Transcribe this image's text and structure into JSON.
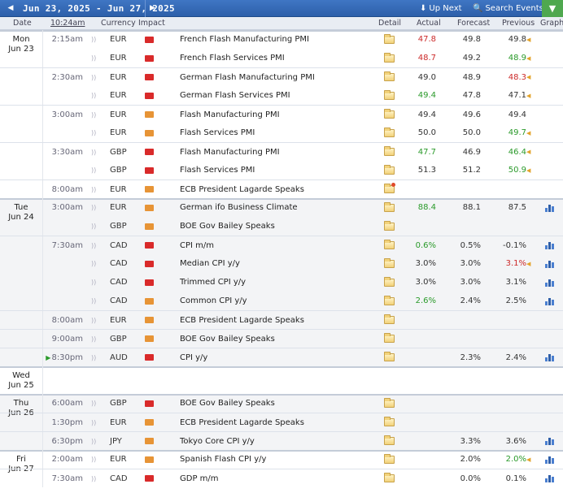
{
  "toolbar": {
    "date_range": "Jun 23, 2025 - Jun 27, 2025",
    "prev_icon": "caret-left-icon",
    "next_icon": "caret-right-icon",
    "up_next_label": "Up Next",
    "search_label": "Search Events",
    "filter_icon": "filter-icon"
  },
  "header": {
    "date": "Date",
    "time": "10:24am",
    "currency": "Currency",
    "impact": "Impact",
    "detail": "Detail",
    "actual": "Actual",
    "forecast": "Forecast",
    "previous": "Previous",
    "graph": "Graph"
  },
  "days": [
    {
      "name": "Mon",
      "date": "Jun 23"
    },
    {
      "name": "Tue",
      "date": "Jun 24"
    },
    {
      "name": "Wed",
      "date": "Jun 25"
    },
    {
      "name": "Thu",
      "date": "Jun 26"
    },
    {
      "name": "Fri",
      "date": "Jun 27"
    }
  ],
  "events": [
    {
      "time": "2:15am",
      "currency": "EUR",
      "impact": "high",
      "event": "French Flash Manufacturing PMI",
      "detail": "folder",
      "actual": "47.8",
      "actual_color": "red",
      "forecast": "49.8",
      "previous": "49.8",
      "revised": true,
      "graph": false
    },
    {
      "time": "",
      "currency": "EUR",
      "impact": "high",
      "event": "French Flash Services PMI",
      "detail": "folder",
      "actual": "48.7",
      "actual_color": "red",
      "forecast": "49.2",
      "previous": "48.9",
      "previous_color": "green",
      "revised": true,
      "graph": false
    },
    {
      "time": "2:30am",
      "currency": "EUR",
      "impact": "high",
      "event": "German Flash Manufacturing PMI",
      "detail": "folder",
      "actual": "49.0",
      "actual_color": "",
      "forecast": "48.9",
      "previous": "48.3",
      "previous_color": "red",
      "revised": true,
      "graph": false
    },
    {
      "time": "",
      "currency": "EUR",
      "impact": "high",
      "event": "German Flash Services PMI",
      "detail": "folder",
      "actual": "49.4",
      "actual_color": "green",
      "forecast": "47.8",
      "previous": "47.1",
      "revised": true,
      "graph": false
    },
    {
      "time": "3:00am",
      "currency": "EUR",
      "impact": "med",
      "event": "Flash Manufacturing PMI",
      "detail": "folder",
      "actual": "49.4",
      "actual_color": "",
      "forecast": "49.6",
      "previous": "49.4",
      "revised": false,
      "graph": false
    },
    {
      "time": "",
      "currency": "EUR",
      "impact": "med",
      "event": "Flash Services PMI",
      "detail": "folder",
      "actual": "50.0",
      "actual_color": "",
      "forecast": "50.0",
      "previous": "49.7",
      "previous_color": "green",
      "revised": true,
      "graph": false
    },
    {
      "time": "3:30am",
      "currency": "GBP",
      "impact": "high",
      "event": "Flash Manufacturing PMI",
      "detail": "folder",
      "actual": "47.7",
      "actual_color": "green",
      "forecast": "46.9",
      "previous": "46.4",
      "previous_color": "green",
      "revised": true,
      "graph": false
    },
    {
      "time": "",
      "currency": "GBP",
      "impact": "high",
      "event": "Flash Services PMI",
      "detail": "folder",
      "actual": "51.3",
      "actual_color": "",
      "forecast": "51.2",
      "previous": "50.9",
      "previous_color": "green",
      "revised": true,
      "graph": false
    },
    {
      "time": "8:00am",
      "currency": "EUR",
      "impact": "med",
      "event": "ECB President Lagarde Speaks",
      "detail": "folder-alert",
      "actual": "",
      "actual_color": "",
      "forecast": "",
      "previous": "",
      "revised": false,
      "graph": false
    },
    {
      "time": "3:00am",
      "currency": "EUR",
      "impact": "med",
      "event": "German ifo Business Climate",
      "detail": "folder",
      "actual": "88.4",
      "actual_color": "green",
      "forecast": "88.1",
      "previous": "87.5",
      "revised": false,
      "graph": true
    },
    {
      "time": "",
      "currency": "GBP",
      "impact": "med",
      "event": "BOE Gov Bailey Speaks",
      "detail": "folder",
      "actual": "",
      "actual_color": "",
      "forecast": "",
      "previous": "",
      "revised": false,
      "graph": false
    },
    {
      "time": "7:30am",
      "currency": "CAD",
      "impact": "high",
      "event": "CPI m/m",
      "detail": "folder",
      "actual": "0.6%",
      "actual_color": "green",
      "forecast": "0.5%",
      "previous": "-0.1%",
      "revised": false,
      "graph": true
    },
    {
      "time": "",
      "currency": "CAD",
      "impact": "high",
      "event": "Median CPI y/y",
      "detail": "folder",
      "actual": "3.0%",
      "actual_color": "",
      "forecast": "3.0%",
      "previous": "3.1%",
      "previous_color": "red",
      "revised": true,
      "graph": true
    },
    {
      "time": "",
      "currency": "CAD",
      "impact": "high",
      "event": "Trimmed CPI y/y",
      "detail": "folder",
      "actual": "3.0%",
      "actual_color": "",
      "forecast": "3.0%",
      "previous": "3.1%",
      "revised": false,
      "graph": true
    },
    {
      "time": "",
      "currency": "CAD",
      "impact": "med",
      "event": "Common CPI y/y",
      "detail": "folder",
      "actual": "2.6%",
      "actual_color": "green",
      "forecast": "2.4%",
      "previous": "2.5%",
      "revised": false,
      "graph": true
    },
    {
      "time": "8:00am",
      "currency": "EUR",
      "impact": "med",
      "event": "ECB President Lagarde Speaks",
      "detail": "folder",
      "actual": "",
      "actual_color": "",
      "forecast": "",
      "previous": "",
      "revised": false,
      "graph": false
    },
    {
      "time": "9:00am",
      "currency": "GBP",
      "impact": "med",
      "event": "BOE Gov Bailey Speaks",
      "detail": "folder",
      "actual": "",
      "actual_color": "",
      "forecast": "",
      "previous": "",
      "revised": false,
      "graph": false
    },
    {
      "time": "8:30pm",
      "currency": "AUD",
      "impact": "high",
      "event": "CPI y/y",
      "detail": "folder",
      "actual": "",
      "actual_color": "",
      "forecast": "2.3%",
      "previous": "2.4%",
      "revised": false,
      "graph": true,
      "next_marker": true
    },
    {
      "time": "6:00am",
      "currency": "GBP",
      "impact": "high",
      "event": "BOE Gov Bailey Speaks",
      "detail": "folder",
      "actual": "",
      "actual_color": "",
      "forecast": "",
      "previous": "",
      "revised": false,
      "graph": false
    },
    {
      "time": "1:30pm",
      "currency": "EUR",
      "impact": "med",
      "event": "ECB President Lagarde Speaks",
      "detail": "folder",
      "actual": "",
      "actual_color": "",
      "forecast": "",
      "previous": "",
      "revised": false,
      "graph": false
    },
    {
      "time": "6:30pm",
      "currency": "JPY",
      "impact": "med",
      "event": "Tokyo Core CPI y/y",
      "detail": "folder",
      "actual": "",
      "actual_color": "",
      "forecast": "3.3%",
      "previous": "3.6%",
      "revised": false,
      "graph": true
    },
    {
      "time": "2:00am",
      "currency": "EUR",
      "impact": "med",
      "event": "Spanish Flash CPI y/y",
      "detail": "folder",
      "actual": "",
      "actual_color": "",
      "forecast": "2.0%",
      "previous": "2.0%",
      "previous_color": "green",
      "revised": true,
      "graph": true
    },
    {
      "time": "7:30am",
      "currency": "CAD",
      "impact": "high",
      "event": "GDP m/m",
      "detail": "folder",
      "actual": "",
      "actual_color": "",
      "forecast": "0.0%",
      "previous": "0.1%",
      "revised": false,
      "graph": true
    }
  ]
}
